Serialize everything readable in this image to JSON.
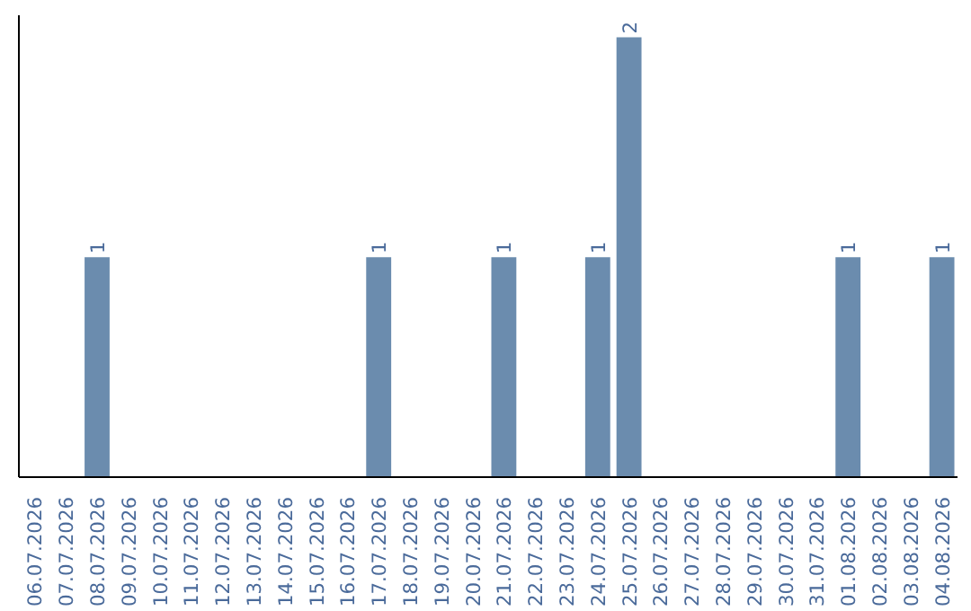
{
  "chart_data": {
    "type": "bar",
    "categories": [
      "06.07.2026",
      "07.07.2026",
      "08.07.2026",
      "09.07.2026",
      "10.07.2026",
      "11.07.2026",
      "12.07.2026",
      "13.07.2026",
      "14.07.2026",
      "15.07.2026",
      "16.07.2026",
      "17.07.2026",
      "18.07.2026",
      "19.07.2026",
      "20.07.2026",
      "21.07.2026",
      "22.07.2026",
      "23.07.2026",
      "24.07.2026",
      "25.07.2026",
      "26.07.2026",
      "27.07.2026",
      "28.07.2026",
      "29.07.2026",
      "30.07.2026",
      "31.07.2026",
      "01.08.2026",
      "02.08.2026",
      "03.08.2026",
      "04.08.2026"
    ],
    "values": [
      0,
      0,
      1,
      0,
      0,
      0,
      0,
      0,
      0,
      0,
      0,
      1,
      0,
      0,
      0,
      1,
      0,
      0,
      1,
      2,
      0,
      0,
      0,
      0,
      0,
      0,
      1,
      0,
      0,
      1
    ],
    "value_labels": [
      null,
      null,
      "1",
      null,
      null,
      null,
      null,
      null,
      null,
      null,
      null,
      "1",
      null,
      null,
      null,
      "1",
      null,
      null,
      "1",
      "2",
      null,
      null,
      null,
      null,
      null,
      null,
      "1",
      null,
      null,
      "1"
    ],
    "color": "#6b8cae",
    "grid": false
  }
}
